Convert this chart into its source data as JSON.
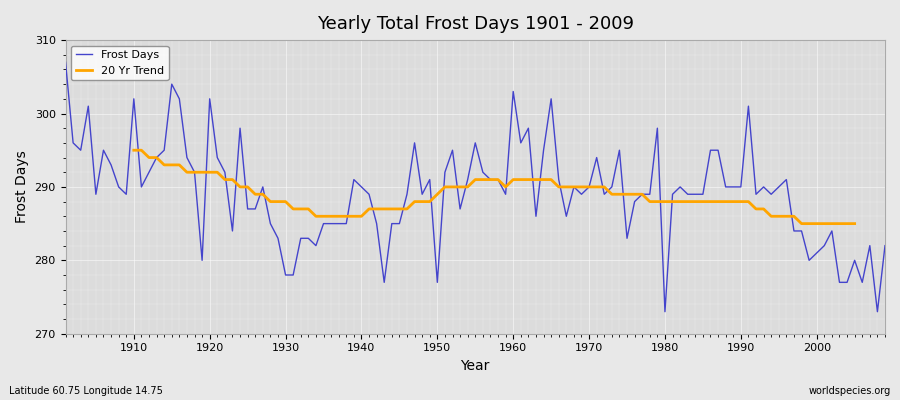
{
  "title": "Yearly Total Frost Days 1901 - 2009",
  "xlabel": "Year",
  "ylabel": "Frost Days",
  "bottom_left_label": "Latitude 60.75 Longitude 14.75",
  "bottom_right_label": "worldspecies.org",
  "years": [
    1901,
    1902,
    1903,
    1904,
    1905,
    1906,
    1907,
    1908,
    1909,
    1910,
    1911,
    1912,
    1913,
    1914,
    1915,
    1916,
    1917,
    1918,
    1919,
    1920,
    1921,
    1922,
    1923,
    1924,
    1925,
    1926,
    1927,
    1928,
    1929,
    1930,
    1931,
    1932,
    1933,
    1934,
    1935,
    1936,
    1937,
    1938,
    1939,
    1940,
    1941,
    1942,
    1943,
    1944,
    1945,
    1946,
    1947,
    1948,
    1949,
    1950,
    1951,
    1952,
    1953,
    1954,
    1955,
    1956,
    1957,
    1958,
    1959,
    1960,
    1961,
    1962,
    1963,
    1964,
    1965,
    1966,
    1967,
    1968,
    1969,
    1970,
    1971,
    1972,
    1973,
    1974,
    1975,
    1976,
    1977,
    1978,
    1979,
    1980,
    1981,
    1982,
    1983,
    1984,
    1985,
    1986,
    1987,
    1988,
    1989,
    1990,
    1991,
    1992,
    1993,
    1994,
    1995,
    1996,
    1997,
    1998,
    1999,
    2000,
    2001,
    2002,
    2003,
    2004,
    2005,
    2006,
    2007,
    2008,
    2009
  ],
  "frost_days": [
    307,
    296,
    295,
    301,
    289,
    295,
    293,
    290,
    289,
    302,
    290,
    292,
    294,
    295,
    304,
    302,
    294,
    292,
    280,
    302,
    294,
    292,
    284,
    298,
    287,
    287,
    290,
    285,
    283,
    278,
    278,
    283,
    283,
    282,
    285,
    285,
    285,
    285,
    291,
    290,
    289,
    285,
    277,
    285,
    285,
    289,
    296,
    289,
    291,
    277,
    292,
    295,
    287,
    291,
    296,
    292,
    291,
    291,
    289,
    303,
    296,
    298,
    286,
    295,
    302,
    291,
    286,
    290,
    289,
    290,
    294,
    289,
    290,
    295,
    283,
    288,
    289,
    289,
    298,
    273,
    289,
    290,
    289,
    289,
    289,
    295,
    295,
    290,
    290,
    290,
    301,
    289,
    290,
    289,
    290,
    291,
    284,
    284,
    280,
    281,
    282,
    284,
    277,
    277,
    280,
    277,
    282,
    273,
    282
  ],
  "trend_years": [
    1910,
    1911,
    1912,
    1913,
    1914,
    1915,
    1916,
    1917,
    1918,
    1919,
    1920,
    1921,
    1922,
    1923,
    1924,
    1925,
    1926,
    1927,
    1928,
    1929,
    1930,
    1931,
    1932,
    1933,
    1934,
    1935,
    1936,
    1937,
    1938,
    1939,
    1940,
    1941,
    1942,
    1943,
    1944,
    1945,
    1946,
    1947,
    1948,
    1949,
    1950,
    1951,
    1952,
    1953,
    1954,
    1955,
    1956,
    1957,
    1958,
    1959,
    1960,
    1961,
    1962,
    1963,
    1964,
    1965,
    1966,
    1967,
    1968,
    1969,
    1970,
    1971,
    1972,
    1973,
    1974,
    1975,
    1976,
    1977,
    1978,
    1979,
    1980,
    1981,
    1982,
    1983,
    1984,
    1985,
    1986,
    1987,
    1988,
    1989,
    1990,
    1991,
    1992,
    1993,
    1994,
    1995,
    1996,
    1997,
    1998,
    1999,
    2000,
    2001,
    2002,
    2003,
    2004,
    2005
  ],
  "trend_values": [
    295,
    295,
    294,
    294,
    293,
    293,
    293,
    292,
    292,
    292,
    292,
    292,
    291,
    291,
    290,
    290,
    289,
    289,
    288,
    288,
    288,
    287,
    287,
    287,
    286,
    286,
    286,
    286,
    286,
    286,
    286,
    287,
    287,
    287,
    287,
    287,
    287,
    288,
    288,
    288,
    289,
    290,
    290,
    290,
    290,
    291,
    291,
    291,
    291,
    290,
    291,
    291,
    291,
    291,
    291,
    291,
    290,
    290,
    290,
    290,
    290,
    290,
    290,
    289,
    289,
    289,
    289,
    289,
    288,
    288,
    288,
    288,
    288,
    288,
    288,
    288,
    288,
    288,
    288,
    288,
    288,
    288,
    287,
    287,
    286,
    286,
    286,
    286,
    285,
    285,
    285,
    285,
    285,
    285,
    285,
    285
  ],
  "line_color": "#4444cc",
  "trend_color": "#FFA500",
  "bg_color": "#e8e8e8",
  "plot_bg_color": "#dcdcdc",
  "ylim": [
    270,
    310
  ],
  "yticks": [
    270,
    280,
    290,
    300,
    310
  ],
  "legend_loc": "upper right"
}
